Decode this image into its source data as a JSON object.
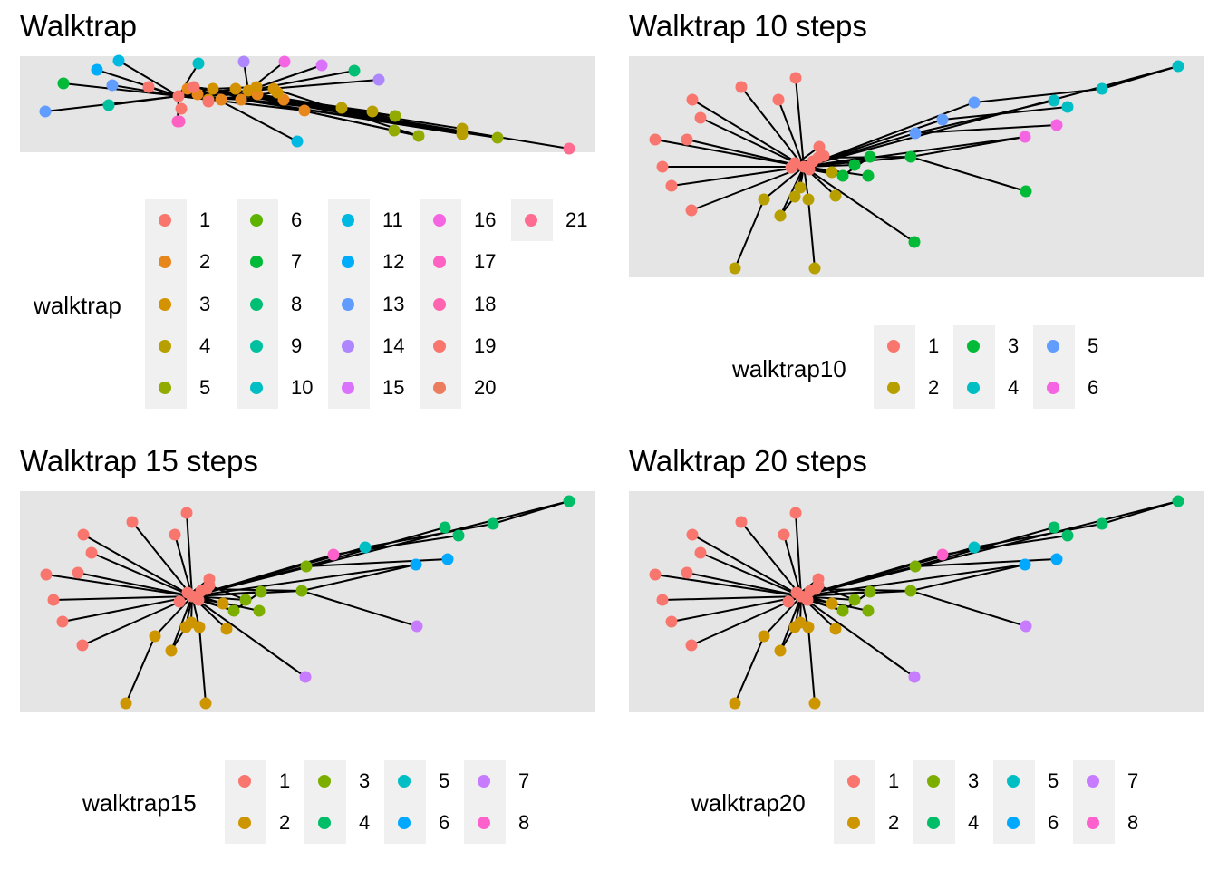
{
  "chart_data": [
    {
      "type": "network",
      "title": "Walktrap",
      "legend": {
        "title": "walktrap",
        "entries": [
          {
            "label": "1",
            "color": "#F8766D"
          },
          {
            "label": "2",
            "color": "#E7851E"
          },
          {
            "label": "3",
            "color": "#D09400"
          },
          {
            "label": "4",
            "color": "#B2A100"
          },
          {
            "label": "5",
            "color": "#89AC00"
          },
          {
            "label": "6",
            "color": "#45B500"
          },
          {
            "label": "7",
            "color": "#00BC51"
          },
          {
            "label": "8",
            "color": "#00C087"
          },
          {
            "label": "9",
            "color": "#00C0B2"
          },
          {
            "label": "10",
            "color": "#00BCD6"
          },
          {
            "label": "11",
            "color": "#00B3F2"
          },
          {
            "label": "12",
            "color": "#29A3FF"
          },
          {
            "label": "13",
            "color": "#9C8DFF"
          },
          {
            "label": "14",
            "color": "#D277FF"
          },
          {
            "label": "15",
            "color": "#F166E8"
          },
          {
            "label": "16",
            "color": "#FF61C7"
          },
          {
            "label": "17",
            "color": "#FF689E"
          },
          {
            "label": "18",
            "color": "#F8766D"
          },
          {
            "label": "19",
            "color": "#E7851E"
          },
          {
            "label": "20",
            "color": "#D09400"
          },
          {
            "label": "21",
            "color": "#B2A100"
          }
        ],
        "display_labels": [
          "1",
          "2",
          "3",
          "4",
          "5",
          "6",
          "7",
          "8",
          "9",
          "10",
          "11",
          "12",
          "13",
          "14",
          "15",
          "16",
          "17",
          "18",
          "19",
          "20",
          "21"
        ],
        "display_colors": [
          "#F8766D",
          "#E7861B",
          "#D39200",
          "#B79F00",
          "#93AA00",
          "#5EB300",
          "#00BA38",
          "#00BF74",
          "#00C19F",
          "#00BFC4",
          "#00B9E3",
          "#00ADFA",
          "#619CFF",
          "#AE87FF",
          "#DB72FB",
          "#F564E3",
          "#FF61C3",
          "#FF64B0",
          "#F8766D",
          "#EB7D5E",
          "#FF6C91"
        ],
        "columns": 5
      }
    },
    {
      "type": "network",
      "title": "Walktrap 10 steps",
      "legend": {
        "title": "walktrap10",
        "display_labels": [
          "1",
          "2",
          "3",
          "4",
          "5",
          "6"
        ],
        "display_colors": [
          "#F8766D",
          "#B79F00",
          "#00BA38",
          "#00BFC4",
          "#619CFF",
          "#F564E3"
        ],
        "columns": 3
      }
    },
    {
      "type": "network",
      "title": "Walktrap 15 steps",
      "legend": {
        "title": "walktrap15",
        "display_labels": [
          "1",
          "2",
          "3",
          "4",
          "5",
          "6",
          "7",
          "8"
        ],
        "display_colors": [
          "#F8766D",
          "#CD9600",
          "#7CAE00",
          "#00BE67",
          "#00BFC4",
          "#00A9FF",
          "#C77CFF",
          "#FF61CC"
        ],
        "columns": 4
      }
    },
    {
      "type": "network",
      "title": "Walktrap 20 steps",
      "legend": {
        "title": "walktrap20",
        "display_labels": [
          "1",
          "2",
          "3",
          "4",
          "5",
          "6",
          "7",
          "8"
        ],
        "display_colors": [
          "#F8766D",
          "#CD9600",
          "#7CAE00",
          "#00BE67",
          "#00BFC4",
          "#00A9FF",
          "#C77CFF",
          "#FF61CC"
        ],
        "columns": 4
      }
    }
  ]
}
